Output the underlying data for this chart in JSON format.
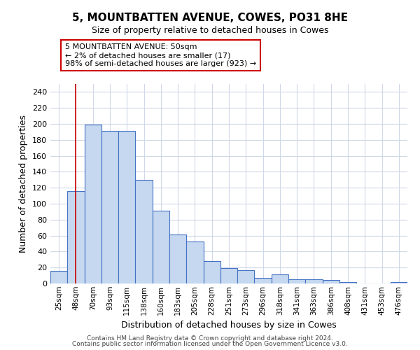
{
  "title": "5, MOUNTBATTEN AVENUE, COWES, PO31 8HE",
  "subtitle": "Size of property relative to detached houses in Cowes",
  "xlabel": "Distribution of detached houses by size in Cowes",
  "ylabel": "Number of detached properties",
  "categories": [
    "25sqm",
    "48sqm",
    "70sqm",
    "93sqm",
    "115sqm",
    "138sqm",
    "160sqm",
    "183sqm",
    "205sqm",
    "228sqm",
    "251sqm",
    "273sqm",
    "296sqm",
    "318sqm",
    "341sqm",
    "363sqm",
    "386sqm",
    "408sqm",
    "431sqm",
    "453sqm",
    "476sqm"
  ],
  "values": [
    16,
    116,
    199,
    191,
    191,
    130,
    91,
    61,
    53,
    28,
    19,
    17,
    7,
    11,
    5,
    5,
    4,
    2,
    0,
    0,
    2
  ],
  "bar_color": "#c5d8f0",
  "bar_edge_color": "#4472c4",
  "vline_x_index": 1,
  "vline_color": "#cc0000",
  "annotation_text": "5 MOUNTBATTEN AVENUE: 50sqm\n← 2% of detached houses are smaller (17)\n98% of semi-detached houses are larger (923) →",
  "annotation_box_edge": "#cc0000",
  "ylim": [
    0,
    250
  ],
  "yticks": [
    0,
    20,
    40,
    60,
    80,
    100,
    120,
    140,
    160,
    180,
    200,
    220,
    240
  ],
  "footer_line1": "Contains HM Land Registry data © Crown copyright and database right 2024.",
  "footer_line2": "Contains public sector information licensed under the Open Government Licence v3.0.",
  "background_color": "#ffffff",
  "grid_color": "#d0d8e8"
}
